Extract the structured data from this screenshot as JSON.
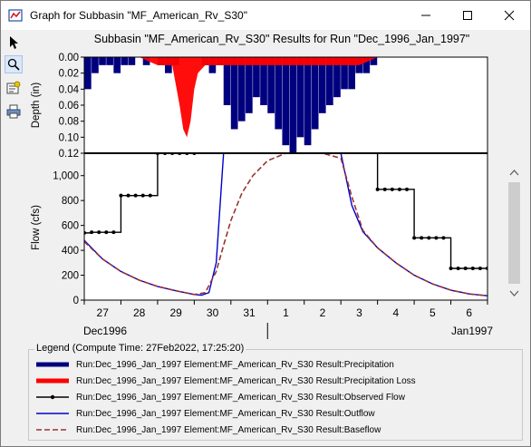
{
  "window": {
    "title": "Graph for Subbasin \"MF_American_Rv_S30\"",
    "minimize_icon": "minimize-icon",
    "maximize_icon": "maximize-icon",
    "close_icon": "close-icon"
  },
  "toolbar": {
    "tools": [
      {
        "icon": "pointer-arrow-icon"
      },
      {
        "icon": "zoom-magnifier-icon"
      },
      {
        "icon": "properties-icon"
      },
      {
        "icon": "print-icon"
      }
    ]
  },
  "chart_data": {
    "type": "line",
    "title": "Subbasin \"MF_American_Rv_S30\" Results for Run \"Dec_1996_Jan_1997\"",
    "top_panel": {
      "ylabel": "Depth (in)",
      "ylim": [
        0,
        0.12
      ],
      "yticks": [
        "0.00",
        "0.02",
        "0.04",
        "0.06",
        "0.08",
        "0.10",
        "0.12"
      ],
      "y_inverted": true
    },
    "bottom_panel": {
      "ylabel": "Flow (cfs)",
      "ylim": [
        0,
        1180
      ],
      "yticks": [
        "0",
        "200",
        "400",
        "600",
        "800",
        "1,000"
      ]
    },
    "x_ticks": [
      "27",
      "28",
      "29",
      "30",
      "31",
      "1",
      "2",
      "3",
      "4",
      "5",
      "6"
    ],
    "x_group_labels": [
      "Dec1996",
      "Jan1997"
    ],
    "x_range_days": [
      0,
      11
    ],
    "series": [
      {
        "name": "Run:Dec_1996_Jan_1997 Element:MF_American_Rv_S30 Result:Precipitation",
        "color": "#00007f",
        "panel": "top",
        "kind": "bars",
        "x": [
          0.0,
          0.2,
          0.4,
          0.6,
          0.8,
          1.0,
          1.2,
          1.4,
          1.6,
          1.8,
          2.0,
          2.2,
          2.4,
          2.6,
          2.8,
          3.0,
          3.2,
          3.4,
          3.6,
          3.8,
          4.0,
          4.2,
          4.4,
          4.6,
          4.8,
          5.0,
          5.2,
          5.4,
          5.6,
          5.8,
          6.0,
          6.2,
          6.4,
          6.6,
          6.8,
          7.0,
          7.2,
          7.4,
          7.6,
          7.8,
          8.0,
          8.2,
          8.4,
          8.6,
          8.8,
          9.0,
          9.2,
          9.4,
          9.6,
          9.8,
          10.0,
          10.2,
          10.4,
          10.6,
          10.8
        ],
        "values": [
          0.04,
          0.02,
          0.01,
          0.01,
          0.02,
          0.01,
          0.01,
          0.0,
          0.01,
          0.0,
          0.01,
          0.02,
          0.01,
          0.0,
          0.0,
          0.0,
          0.01,
          0.02,
          0.01,
          0.06,
          0.09,
          0.08,
          0.07,
          0.05,
          0.06,
          0.07,
          0.09,
          0.11,
          0.12,
          0.1,
          0.11,
          0.09,
          0.07,
          0.06,
          0.05,
          0.04,
          0.04,
          0.02,
          0.02,
          0.01,
          0.0,
          0.0,
          0.0,
          0.0,
          0.0,
          0.0,
          0.0,
          0.0,
          0.0,
          0.0,
          0.0,
          0.0,
          0.0,
          0.0,
          0.0
        ]
      },
      {
        "name": "Run:Dec_1996_Jan_1997 Element:MF_American_Rv_S30 Result:Precipitation Loss",
        "color": "#ff0000",
        "panel": "top",
        "kind": "area",
        "x": [
          0.0,
          1.5,
          2.0,
          2.4,
          2.6,
          2.7,
          2.8,
          2.9,
          3.0,
          3.1,
          3.3,
          3.6,
          4.0,
          4.5,
          5.0,
          5.5,
          6.0,
          6.5,
          7.0,
          7.5,
          8.0,
          9.0,
          11.0
        ],
        "values": [
          0.0,
          0.0,
          0.01,
          0.01,
          0.06,
          0.09,
          0.1,
          0.08,
          0.04,
          0.02,
          0.01,
          0.01,
          0.01,
          0.01,
          0.01,
          0.01,
          0.01,
          0.01,
          0.01,
          0.01,
          0.0,
          0.0,
          0.0
        ]
      },
      {
        "name": "Run:Dec_1996_Jan_1997 Element:MF_American_Rv_S30 Result:Observed Flow",
        "color": "#000000",
        "panel": "bottom",
        "kind": "step",
        "x": [
          0.0,
          0.2,
          0.4,
          0.6,
          0.8,
          1.0,
          1.2,
          1.4,
          1.6,
          1.8,
          2.0,
          2.2,
          2.4,
          2.6,
          2.8,
          3.0,
          8.0,
          8.2,
          8.4,
          8.6,
          8.8,
          9.0,
          9.2,
          9.4,
          9.6,
          9.8,
          10.0,
          10.2,
          10.4,
          10.6,
          10.8,
          11.0
        ],
        "values": [
          540,
          545,
          545,
          545,
          545,
          840,
          840,
          840,
          840,
          840,
          1180,
          1180,
          1180,
          1180,
          1180,
          1180,
          890,
          890,
          890,
          890,
          890,
          500,
          500,
          500,
          500,
          500,
          255,
          255,
          255,
          255,
          255,
          255
        ]
      },
      {
        "name": "Run:Dec_1996_Jan_1997 Element:MF_American_Rv_S30 Result:Outflow",
        "color": "#0000cc",
        "panel": "bottom",
        "kind": "line",
        "x": [
          0.0,
          0.5,
          1.0,
          1.5,
          2.0,
          2.5,
          3.0,
          3.2,
          3.4,
          3.6,
          3.8,
          7.0,
          7.3,
          7.6,
          8.0,
          8.5,
          9.0,
          9.5,
          10.0,
          10.5,
          11.0
        ],
        "values": [
          480,
          330,
          230,
          160,
          110,
          75,
          45,
          40,
          60,
          300,
          1180,
          1180,
          760,
          550,
          420,
          300,
          200,
          130,
          80,
          50,
          35
        ]
      },
      {
        "name": "Run:Dec_1996_Jan_1997 Element:MF_American_Rv_S30 Result:Baseflow",
        "color": "#993333",
        "panel": "bottom",
        "kind": "dashed",
        "x": [
          0.0,
          0.5,
          1.0,
          1.5,
          2.0,
          2.5,
          3.0,
          3.3,
          3.6,
          3.8,
          4.0,
          4.3,
          4.6,
          5.0,
          5.5,
          6.0,
          6.5,
          7.0,
          7.3,
          7.6,
          8.0,
          8.5,
          9.0,
          9.5,
          10.0,
          10.5,
          11.0
        ],
        "values": [
          470,
          330,
          230,
          160,
          110,
          75,
          45,
          60,
          230,
          440,
          640,
          860,
          1000,
          1120,
          1180,
          1180,
          1180,
          1140,
          830,
          560,
          420,
          300,
          200,
          130,
          80,
          50,
          35
        ]
      }
    ],
    "grid": false
  },
  "legend": {
    "title": "Legend (Compute Time: 27Feb2022, 17:25:20)",
    "items": [
      {
        "label": "Run:Dec_1996_Jan_1997 Element:MF_American_Rv_S30 Result:Precipitation",
        "style": "thick-bar",
        "color": "#00007f"
      },
      {
        "label": "Run:Dec_1996_Jan_1997 Element:MF_American_Rv_S30 Result:Precipitation Loss",
        "style": "thick-bar",
        "color": "#ff0000"
      },
      {
        "label": "Run:Dec_1996_Jan_1997 Element:MF_American_Rv_S30 Result:Observed Flow",
        "style": "marker-line",
        "color": "#000000"
      },
      {
        "label": "Run:Dec_1996_Jan_1997 Element:MF_American_Rv_S30 Result:Outflow",
        "style": "line",
        "color": "#0000cc"
      },
      {
        "label": "Run:Dec_1996_Jan_1997 Element:MF_American_Rv_S30 Result:Baseflow",
        "style": "dashed",
        "color": "#993333"
      }
    ]
  }
}
